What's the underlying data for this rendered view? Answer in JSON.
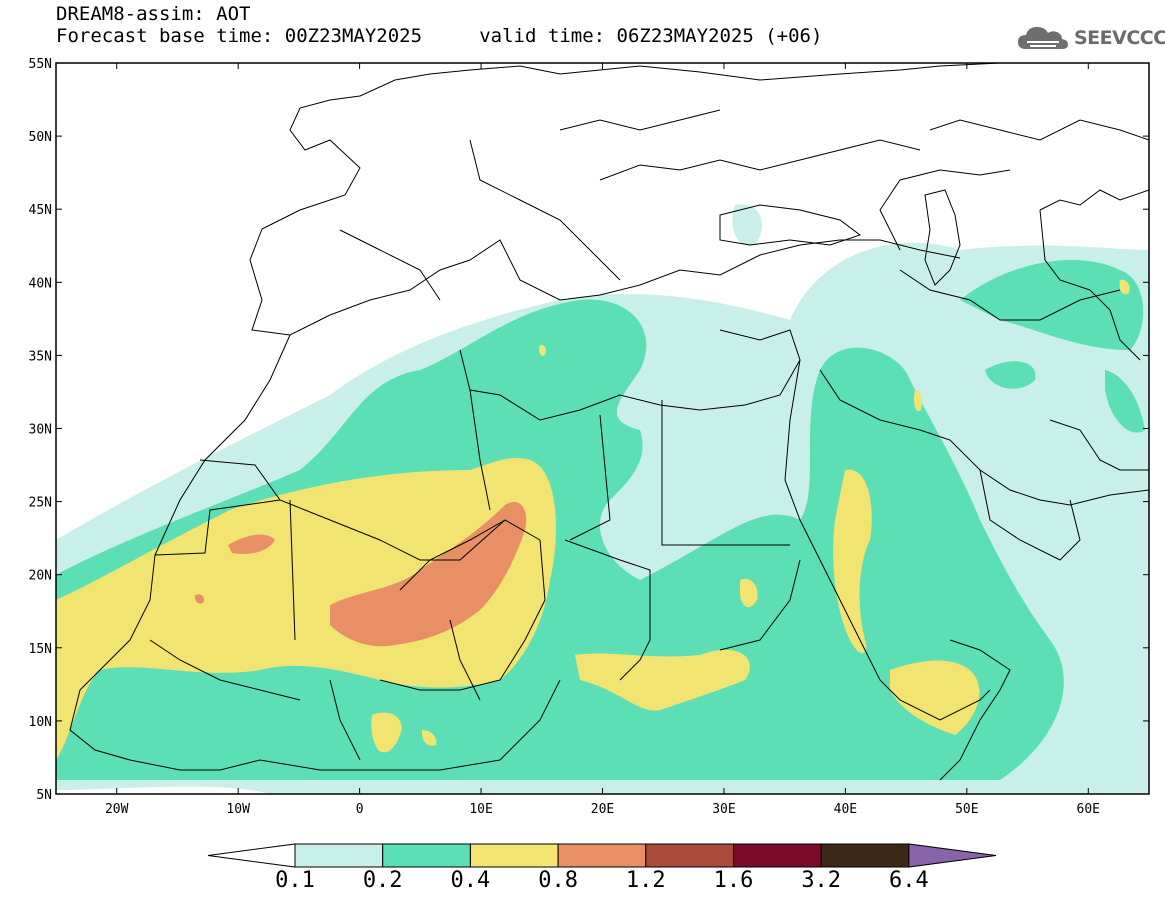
{
  "header": {
    "title": "DREAM8-assim: AOT",
    "subtitle": "Forecast base time: 00Z23MAY2025     valid time: 06Z23MAY2025 (+06)"
  },
  "logo": {
    "text": "SEEVCCC",
    "icon": "cloud-icon"
  },
  "axes": {
    "lat_labels": [
      "55N",
      "50N",
      "45N",
      "40N",
      "35N",
      "30N",
      "25N",
      "20N",
      "15N",
      "10N",
      "5N"
    ],
    "lon_labels": [
      "20W",
      "10W",
      "0",
      "10E",
      "20E",
      "30E",
      "40E",
      "50E",
      "60E"
    ]
  },
  "colorbar": {
    "labels": [
      "0.1",
      "0.2",
      "0.4",
      "0.8",
      "1.2",
      "1.6",
      "3.2",
      "6.4"
    ],
    "colors": [
      "#ffffff",
      "#c8efe9",
      "#5ddfb5",
      "#f2e470",
      "#e88f66",
      "#a84b3a",
      "#7c0a2a",
      "#3d2716",
      "#8a64a8"
    ]
  },
  "chart_data": {
    "type": "heatmap",
    "title": "DREAM8-assim: AOT",
    "variable": "Aerosol Optical Thickness",
    "base_time": "00Z23MAY2025",
    "valid_time": "06Z23MAY2025 (+06)",
    "lon_range": [
      -25,
      65
    ],
    "lat_range": [
      5,
      55
    ],
    "contour_levels": [
      0.1,
      0.2,
      0.4,
      0.8,
      1.2,
      1.6,
      3.2,
      6.4
    ]
  }
}
